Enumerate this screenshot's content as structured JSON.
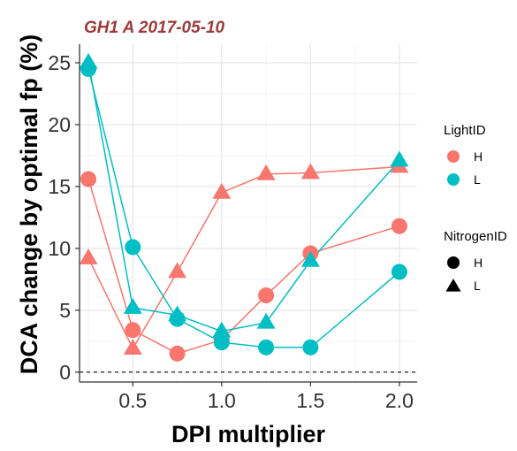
{
  "chart_data": {
    "type": "line",
    "title": "GH1 A 2017-05-10",
    "xlabel": "DPI multiplier",
    "ylabel": "DCA change by optimal fp (%)",
    "xlim": [
      0.2,
      2.1
    ],
    "ylim": [
      -0.8,
      26.5
    ],
    "xticks": [
      0.5,
      1.0,
      1.5,
      2.0
    ],
    "xtick_labels": [
      "0.5",
      "1.0",
      "1.5",
      "2.0"
    ],
    "yticks": [
      0,
      5,
      10,
      15,
      20,
      25
    ],
    "ytick_labels": [
      "0",
      "5",
      "10",
      "15",
      "20",
      "25"
    ],
    "grid": true,
    "reference_line": {
      "y": 0,
      "style": "dashed"
    },
    "x": [
      0.25,
      0.5,
      0.75,
      1.0,
      1.25,
      1.5,
      2.0
    ],
    "series": [
      {
        "light": "H",
        "nitrogen": "H",
        "values": [
          15.6,
          3.4,
          1.5,
          2.6,
          6.2,
          9.6,
          11.8
        ]
      },
      {
        "light": "H",
        "nitrogen": "L",
        "values": [
          9.2,
          1.9,
          8.1,
          14.5,
          16.0,
          16.1,
          16.6
        ]
      },
      {
        "light": "L",
        "nitrogen": "H",
        "values": [
          24.5,
          10.1,
          4.3,
          2.4,
          2.0,
          2.0,
          8.1
        ]
      },
      {
        "light": "L",
        "nitrogen": "L",
        "values": [
          25.0,
          5.2,
          4.6,
          3.3,
          4.0,
          9.0,
          17.1
        ]
      }
    ],
    "legend": {
      "placement": "right",
      "groups": [
        {
          "title": "LightID",
          "entries": [
            {
              "label": "H",
              "color": "#F8766D",
              "shape": "circle"
            },
            {
              "label": "L",
              "color": "#00BFC4",
              "shape": "circle"
            }
          ]
        },
        {
          "title": "NitrogenID",
          "entries": [
            {
              "label": "H",
              "color": "#000000",
              "shape": "circle"
            },
            {
              "label": "L",
              "color": "#000000",
              "shape": "triangle"
            }
          ]
        }
      ]
    },
    "colors": {
      "H": "#F8766D",
      "L": "#00BFC4",
      "title": "#9E3A3A"
    }
  }
}
